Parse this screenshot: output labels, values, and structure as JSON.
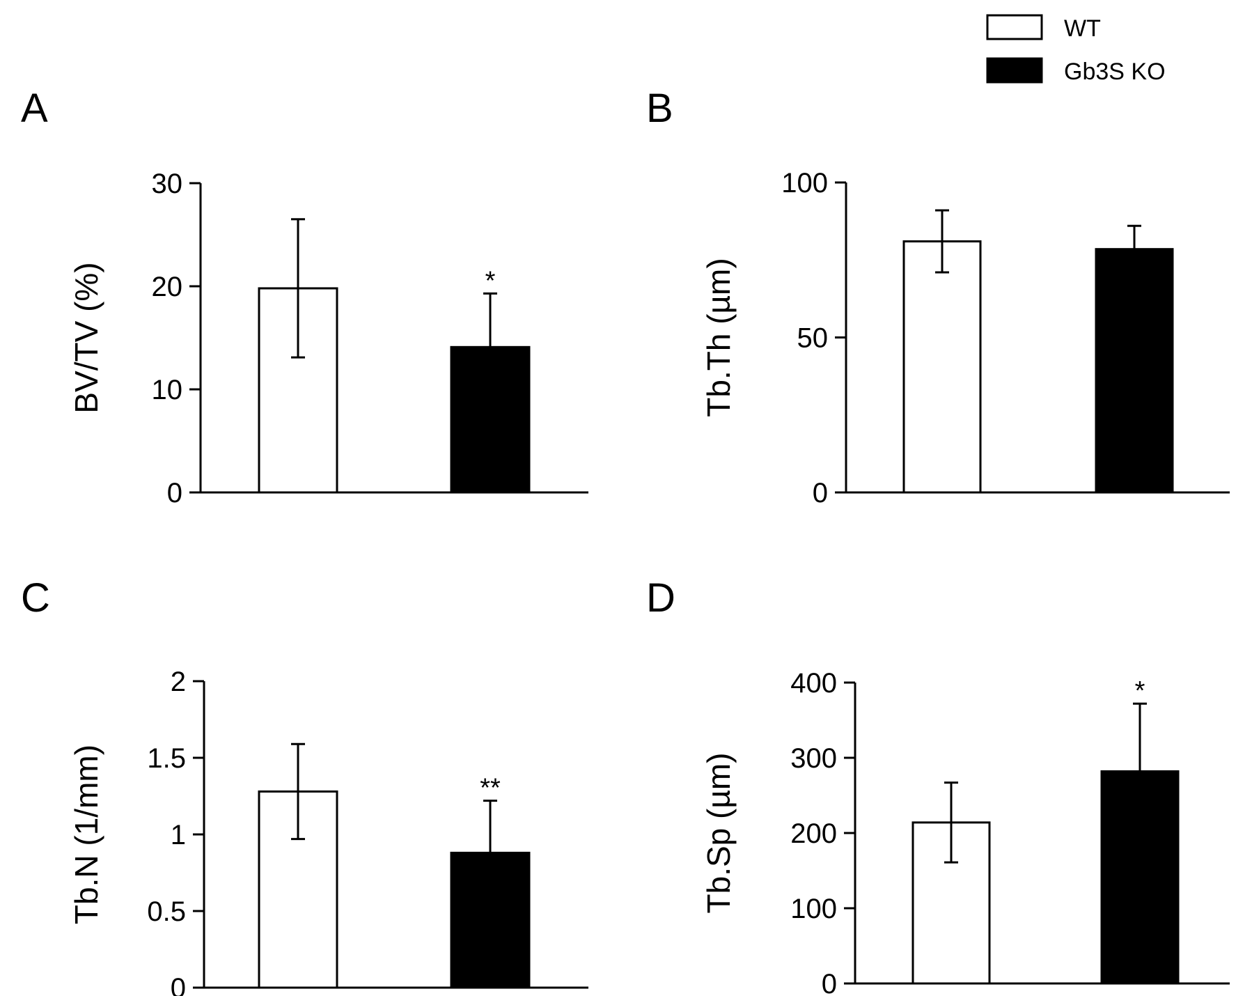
{
  "legend": {
    "items": [
      {
        "label": "WT",
        "fill": "#ffffff"
      },
      {
        "label": "Gb3S KO",
        "fill": "#000000"
      }
    ]
  },
  "chart_data": [
    {
      "type": "bar",
      "panel": "A",
      "ylabel": "BV/TV (%)",
      "categories": [
        "WT",
        "Gb3S KO"
      ],
      "values": [
        19.8,
        14.1
      ],
      "errors": [
        6.7,
        5.2
      ],
      "significance": [
        "",
        "*"
      ],
      "ylim": [
        0,
        30
      ],
      "ticks": [
        0,
        10,
        20,
        30
      ]
    },
    {
      "type": "bar",
      "panel": "B",
      "ylabel": "Tb.Th (µm)",
      "categories": [
        "WT",
        "Gb3S KO"
      ],
      "values": [
        81,
        78.5
      ],
      "errors": [
        10,
        7.5
      ],
      "significance": [
        "",
        ""
      ],
      "ylim": [
        0,
        100
      ],
      "ticks": [
        0,
        50,
        100
      ]
    },
    {
      "type": "bar",
      "panel": "C",
      "ylabel": "Tb.N (1/mm)",
      "categories": [
        "WT",
        "Gb3S KO"
      ],
      "values": [
        1.28,
        0.88
      ],
      "errors": [
        0.31,
        0.34
      ],
      "significance": [
        "",
        "**"
      ],
      "ylim": [
        0,
        2
      ],
      "ticks": [
        0,
        0.5,
        1,
        1.5,
        2
      ]
    },
    {
      "type": "bar",
      "panel": "D",
      "ylabel": "Tb.Sp (µm)",
      "categories": [
        "WT",
        "Gb3S KO"
      ],
      "values": [
        214,
        282
      ],
      "errors": [
        53,
        90
      ],
      "significance": [
        "",
        "*"
      ],
      "ylim": [
        0,
        400
      ],
      "ticks": [
        0,
        100,
        200,
        300,
        400
      ]
    }
  ]
}
